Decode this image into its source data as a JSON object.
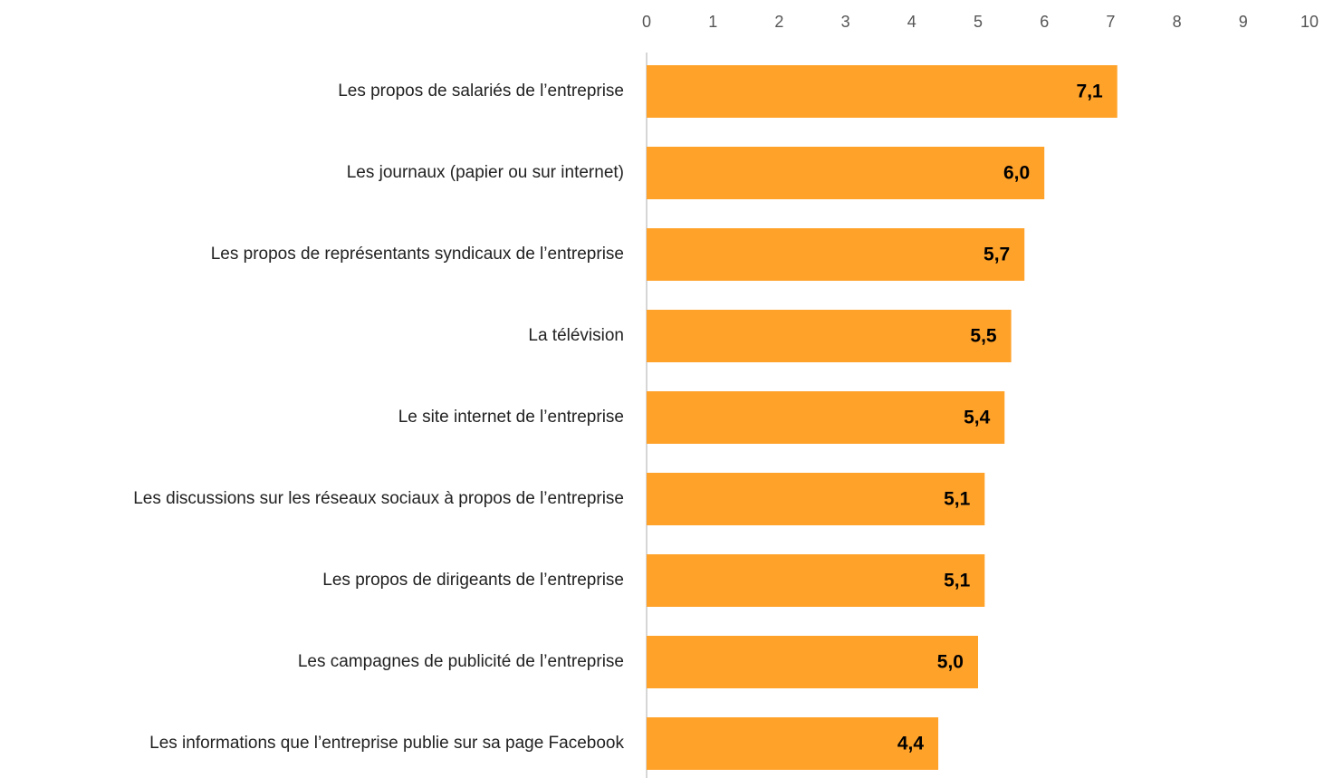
{
  "chart_data": {
    "type": "bar",
    "orientation": "horizontal",
    "categories": [
      "Les propos de salariés de l’entreprise",
      "Les journaux (papier ou sur internet)",
      "Les propos de représentants syndicaux de l’entreprise",
      "La télévision",
      "Le site internet de l’entreprise",
      "Les discussions sur les réseaux sociaux à propos de l’entreprise",
      "Les propos de dirigeants de l’entreprise",
      "Les campagnes de publicité de l’entreprise",
      "Les informations que l’entreprise publie sur sa page Facebook"
    ],
    "values": [
      7.1,
      6.0,
      5.7,
      5.5,
      5.4,
      5.1,
      5.1,
      5.0,
      4.4
    ],
    "value_labels": [
      "7,1",
      "6,0",
      "5,7",
      "5,5",
      "5,4",
      "5,1",
      "5,1",
      "5,0",
      "4,4"
    ],
    "color": "#ffa22a",
    "xlim": [
      0,
      10
    ],
    "xticks": [
      0,
      1,
      2,
      3,
      4,
      5,
      6,
      7,
      8,
      9,
      10
    ],
    "grid": false
  }
}
